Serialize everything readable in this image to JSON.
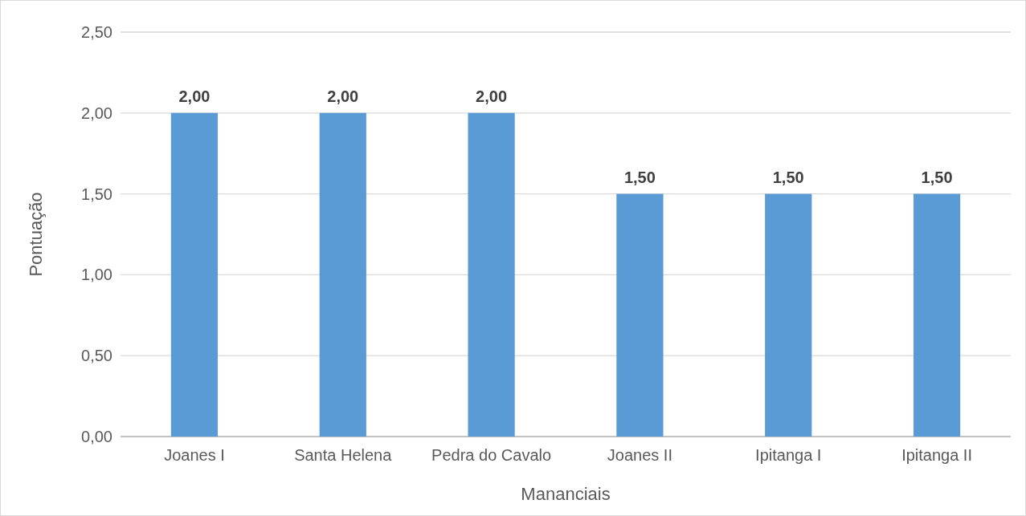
{
  "chart_data": {
    "type": "bar",
    "xlabel": "Mananciais",
    "ylabel": "Pontuação",
    "categories": [
      "Joanes I",
      "Santa Helena",
      "Pedra do Cavalo",
      "Joanes II",
      "Ipitanga I",
      "Ipitanga II"
    ],
    "values": [
      2.0,
      2.0,
      2.0,
      1.5,
      1.5,
      1.5
    ],
    "value_labels": [
      "2,00",
      "2,00",
      "2,00",
      "1,50",
      "1,50",
      "1,50"
    ],
    "color": "#5b9bd5",
    "ylim": [
      0,
      2.5
    ],
    "yticks": [
      {
        "value": 0,
        "label": "0,00"
      },
      {
        "value": 0.5,
        "label": "0,50"
      },
      {
        "value": 1,
        "label": "1,00"
      },
      {
        "value": 1.5,
        "label": "1,50"
      },
      {
        "value": 2,
        "label": "2,00"
      },
      {
        "value": 2.5,
        "label": "2,50"
      }
    ],
    "grid": "y"
  }
}
